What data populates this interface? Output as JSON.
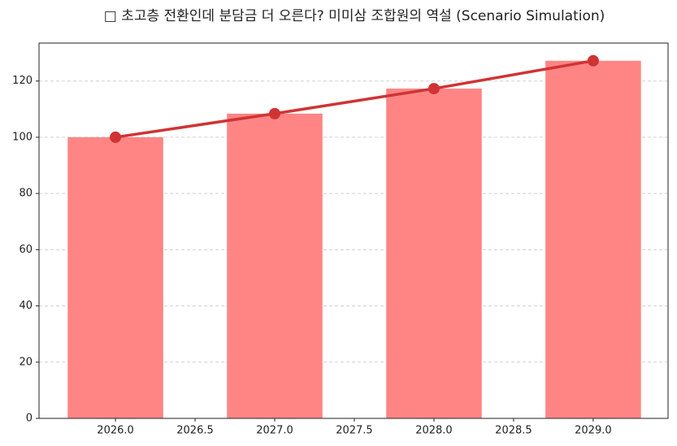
{
  "chart_data": {
    "type": "bar_line",
    "title": "□ 초고층 전환인데 분담금 더 오른다? 미미삼 조합원의 역설 (Scenario Simulation)",
    "x": [
      2026,
      2027,
      2028,
      2029
    ],
    "series": [
      {
        "type": "bar",
        "color": "#ff8585",
        "values": [
          100,
          108.4,
          117.3,
          127.2
        ]
      },
      {
        "type": "line",
        "color": "#d03333",
        "values": [
          100,
          108.4,
          117.3,
          127.2
        ]
      }
    ],
    "xlim": [
      2025.52,
      2029.47
    ],
    "xticks": [
      {
        "value": 2026,
        "label": "2026.0"
      },
      {
        "value": 2026.5,
        "label": "2026.5"
      },
      {
        "value": 2027,
        "label": "2027.0"
      },
      {
        "value": 2027.5,
        "label": "2027.5"
      },
      {
        "value": 2028,
        "label": "2028.0"
      },
      {
        "value": 2028.5,
        "label": "2028.5"
      },
      {
        "value": 2029,
        "label": "2029.0"
      }
    ],
    "ylim": [
      0,
      133.5
    ],
    "yticks": [
      0,
      20,
      40,
      60,
      80,
      100,
      120
    ],
    "grid": true
  }
}
